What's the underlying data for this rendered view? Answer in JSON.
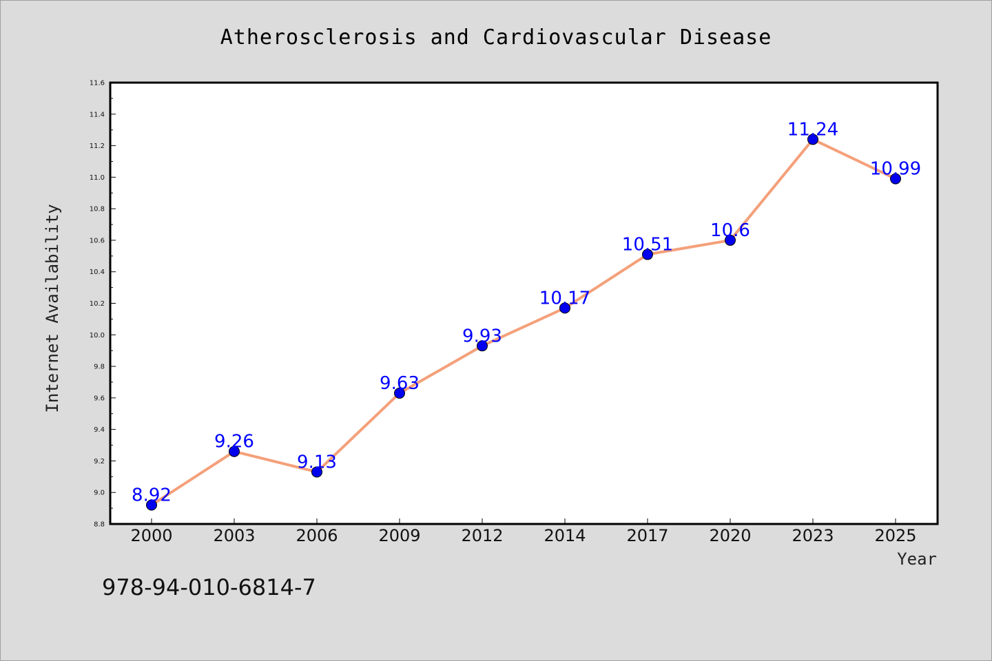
{
  "chart_data": {
    "type": "line",
    "title": "Atherosclerosis and Cardiovascular Disease",
    "xlabel": "Year",
    "ylabel": "Internet Availability",
    "categories": [
      "2000",
      "2003",
      "2006",
      "2009",
      "2012",
      "2014",
      "2017",
      "2020",
      "2023",
      "2025"
    ],
    "series": [
      {
        "values": [
          8.92,
          9.26,
          9.13,
          9.63,
          9.93,
          10.17,
          10.51,
          10.6,
          11.24,
          10.99
        ],
        "data_labels": [
          "8.92",
          "9.26",
          "9.13",
          "9.63",
          "9.93",
          "10.17",
          "10.51",
          "10.6",
          "11.24",
          "10.99"
        ],
        "line_color": "#f4a07a",
        "marker_color": "#0000ee"
      }
    ],
    "ylim": [
      8.8,
      11.6
    ],
    "yticks": [
      "8.8",
      "9.0",
      "9.2",
      "9.4",
      "9.6",
      "9.8",
      "10.0",
      "10.2",
      "10.4",
      "10.6",
      "10.8",
      "11.0",
      "11.2",
      "11.4",
      "11.6"
    ],
    "grid": false,
    "label_color": "#0000ff"
  },
  "footer_text": "978-94-010-6814-7"
}
